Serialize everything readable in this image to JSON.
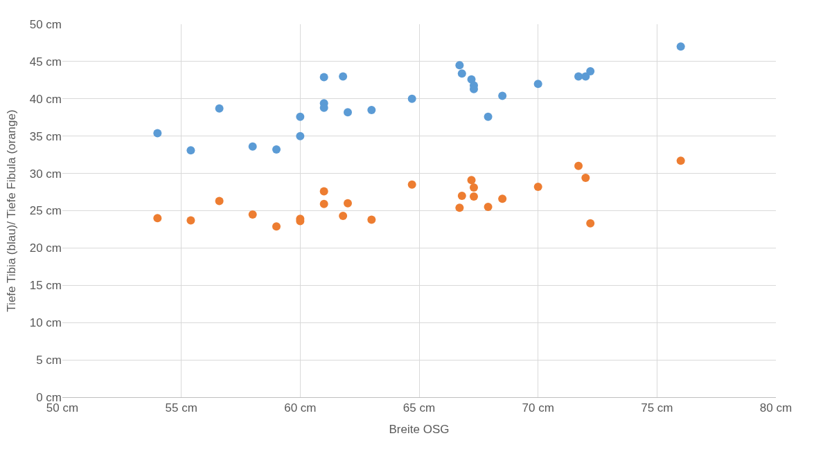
{
  "chart_data": {
    "type": "scatter",
    "xlabel": "Breite OSG",
    "ylabel": "Tiefe Tibia (blau)/ Tiefe Fibula (orange)",
    "xlim": [
      50,
      80
    ],
    "ylim": [
      0,
      50
    ],
    "xticks": [
      {
        "value": 50,
        "label": "50 cm"
      },
      {
        "value": 55,
        "label": "55 cm"
      },
      {
        "value": 60,
        "label": "60 cm"
      },
      {
        "value": 65,
        "label": "65 cm"
      },
      {
        "value": 70,
        "label": "70 cm"
      },
      {
        "value": 75,
        "label": "75 cm"
      },
      {
        "value": 80,
        "label": "80 cm"
      }
    ],
    "yticks": [
      {
        "value": 0,
        "label": "0 cm"
      },
      {
        "value": 5,
        "label": "5 cm"
      },
      {
        "value": 10,
        "label": "10 cm"
      },
      {
        "value": 15,
        "label": "15 cm"
      },
      {
        "value": 20,
        "label": "20 cm"
      },
      {
        "value": 25,
        "label": "25 cm"
      },
      {
        "value": 30,
        "label": "30 cm"
      },
      {
        "value": 35,
        "label": "35 cm"
      },
      {
        "value": 40,
        "label": "40 cm"
      },
      {
        "value": 45,
        "label": "45 cm"
      },
      {
        "value": 50,
        "label": "50 cm"
      }
    ],
    "grid": true,
    "marker": "circle",
    "series": [
      {
        "color": "#5b9bd5",
        "x": [
          54.0,
          55.4,
          56.6,
          58.0,
          59.0,
          60.0,
          60.0,
          61.0,
          61.0,
          61.0,
          61.8,
          62.0,
          63.0,
          64.7,
          66.7,
          66.8,
          67.2,
          67.3,
          67.3,
          67.9,
          68.5,
          70.0,
          71.7,
          72.0,
          72.2,
          76.0
        ],
        "values": [
          35.4,
          33.1,
          38.7,
          33.6,
          33.2,
          37.6,
          35.0,
          42.9,
          39.4,
          38.8,
          43.0,
          38.2,
          38.5,
          40.0,
          44.5,
          43.4,
          42.6,
          41.8,
          41.3,
          37.6,
          40.4,
          42.0,
          43.0,
          43.0,
          43.7,
          47.0
        ]
      },
      {
        "color": "#ed7d31",
        "x": [
          54.0,
          55.4,
          56.6,
          58.0,
          59.0,
          60.0,
          60.0,
          61.0,
          61.0,
          61.8,
          62.0,
          63.0,
          64.7,
          66.7,
          66.8,
          67.2,
          67.3,
          67.3,
          67.9,
          68.5,
          70.0,
          71.7,
          72.0,
          72.2,
          76.0
        ],
        "values": [
          24.0,
          23.7,
          26.3,
          24.5,
          22.9,
          23.9,
          23.6,
          27.6,
          25.9,
          24.3,
          26.0,
          23.8,
          28.5,
          25.4,
          27.0,
          29.1,
          28.1,
          26.9,
          25.5,
          26.6,
          28.2,
          31.0,
          29.4,
          23.3,
          31.7
        ]
      }
    ]
  }
}
